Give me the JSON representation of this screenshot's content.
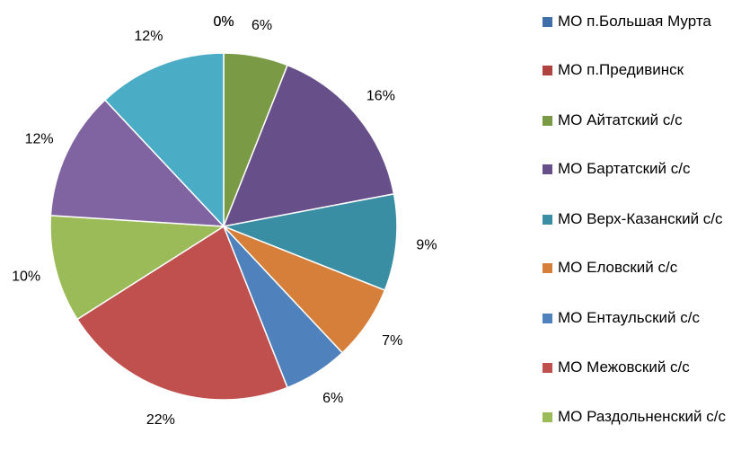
{
  "chart_data": {
    "type": "pie",
    "categories": [
      "МО п.Большая Мурта",
      "МО п.Предивинск",
      "МО Айтатский с/с",
      "МО Бартатский с/с",
      "МО Верх-Казанский с/с",
      "МО Еловский с/с",
      "МО Ентаульский с/с",
      "МО Межовский с/с",
      "МО Раздольненский с/с",
      null,
      null
    ],
    "values": [
      0,
      0,
      6,
      16,
      9,
      7,
      6,
      22,
      10,
      12,
      12
    ],
    "value_labels": [
      "0%",
      "0%",
      "6%",
      "16%",
      "9%",
      "7%",
      "6%",
      "22%",
      "10%",
      "12%",
      "12%"
    ],
    "colors": [
      "#3f6fa9",
      "#b0423f",
      "#7a9a45",
      "#67508a",
      "#3a8ea4",
      "#d57f3a",
      "#4f81bd",
      "#c0504d",
      "#9bbb59",
      "#8064a2",
      "#4bacc6"
    ]
  }
}
